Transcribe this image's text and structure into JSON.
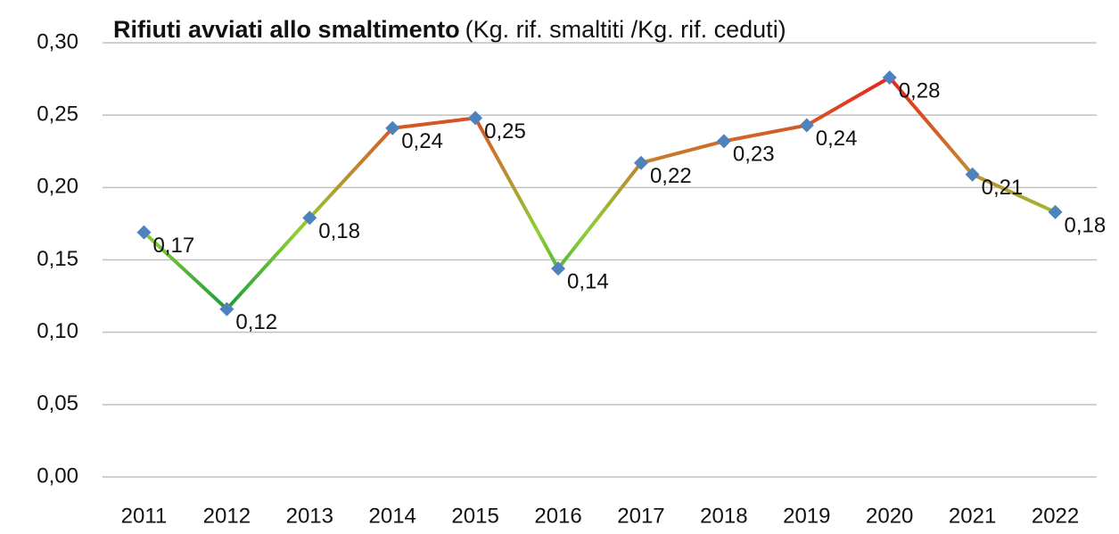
{
  "chart_data": {
    "type": "line",
    "title": "Rifiuti avviati allo smaltimento",
    "subtitle": "(Kg. rif. smaltiti /Kg. rif. ceduti)",
    "categories": [
      "2011",
      "2012",
      "2013",
      "2014",
      "2015",
      "2016",
      "2017",
      "2018",
      "2019",
      "2020",
      "2021",
      "2022"
    ],
    "values": [
      0.169,
      0.116,
      0.179,
      0.241,
      0.248,
      0.144,
      0.217,
      0.232,
      0.243,
      0.276,
      0.209,
      0.183
    ],
    "value_labels": [
      "0,17",
      "0,12",
      "0,18",
      "0,24",
      "0,25",
      "0,14",
      "0,22",
      "0,23",
      "0,24",
      "0,28",
      "0,21",
      "0,18"
    ],
    "marker_color": "#4f81bd",
    "line_color_scale": [
      "#1a9e3c",
      "#8fcf35",
      "#c8782e",
      "#e8241a"
    ],
    "ylim": [
      0,
      0.3
    ],
    "yticks": [
      {
        "value": 0,
        "label": "0,00"
      },
      {
        "value": 0.05,
        "label": "0,05"
      },
      {
        "value": 0.1,
        "label": "0,10"
      },
      {
        "value": 0.15,
        "label": "0,15"
      },
      {
        "value": 0.2,
        "label": "0,20"
      },
      {
        "value": 0.25,
        "label": "0,25"
      },
      {
        "value": 0.3,
        "label": "0,30"
      }
    ],
    "grid": true
  }
}
